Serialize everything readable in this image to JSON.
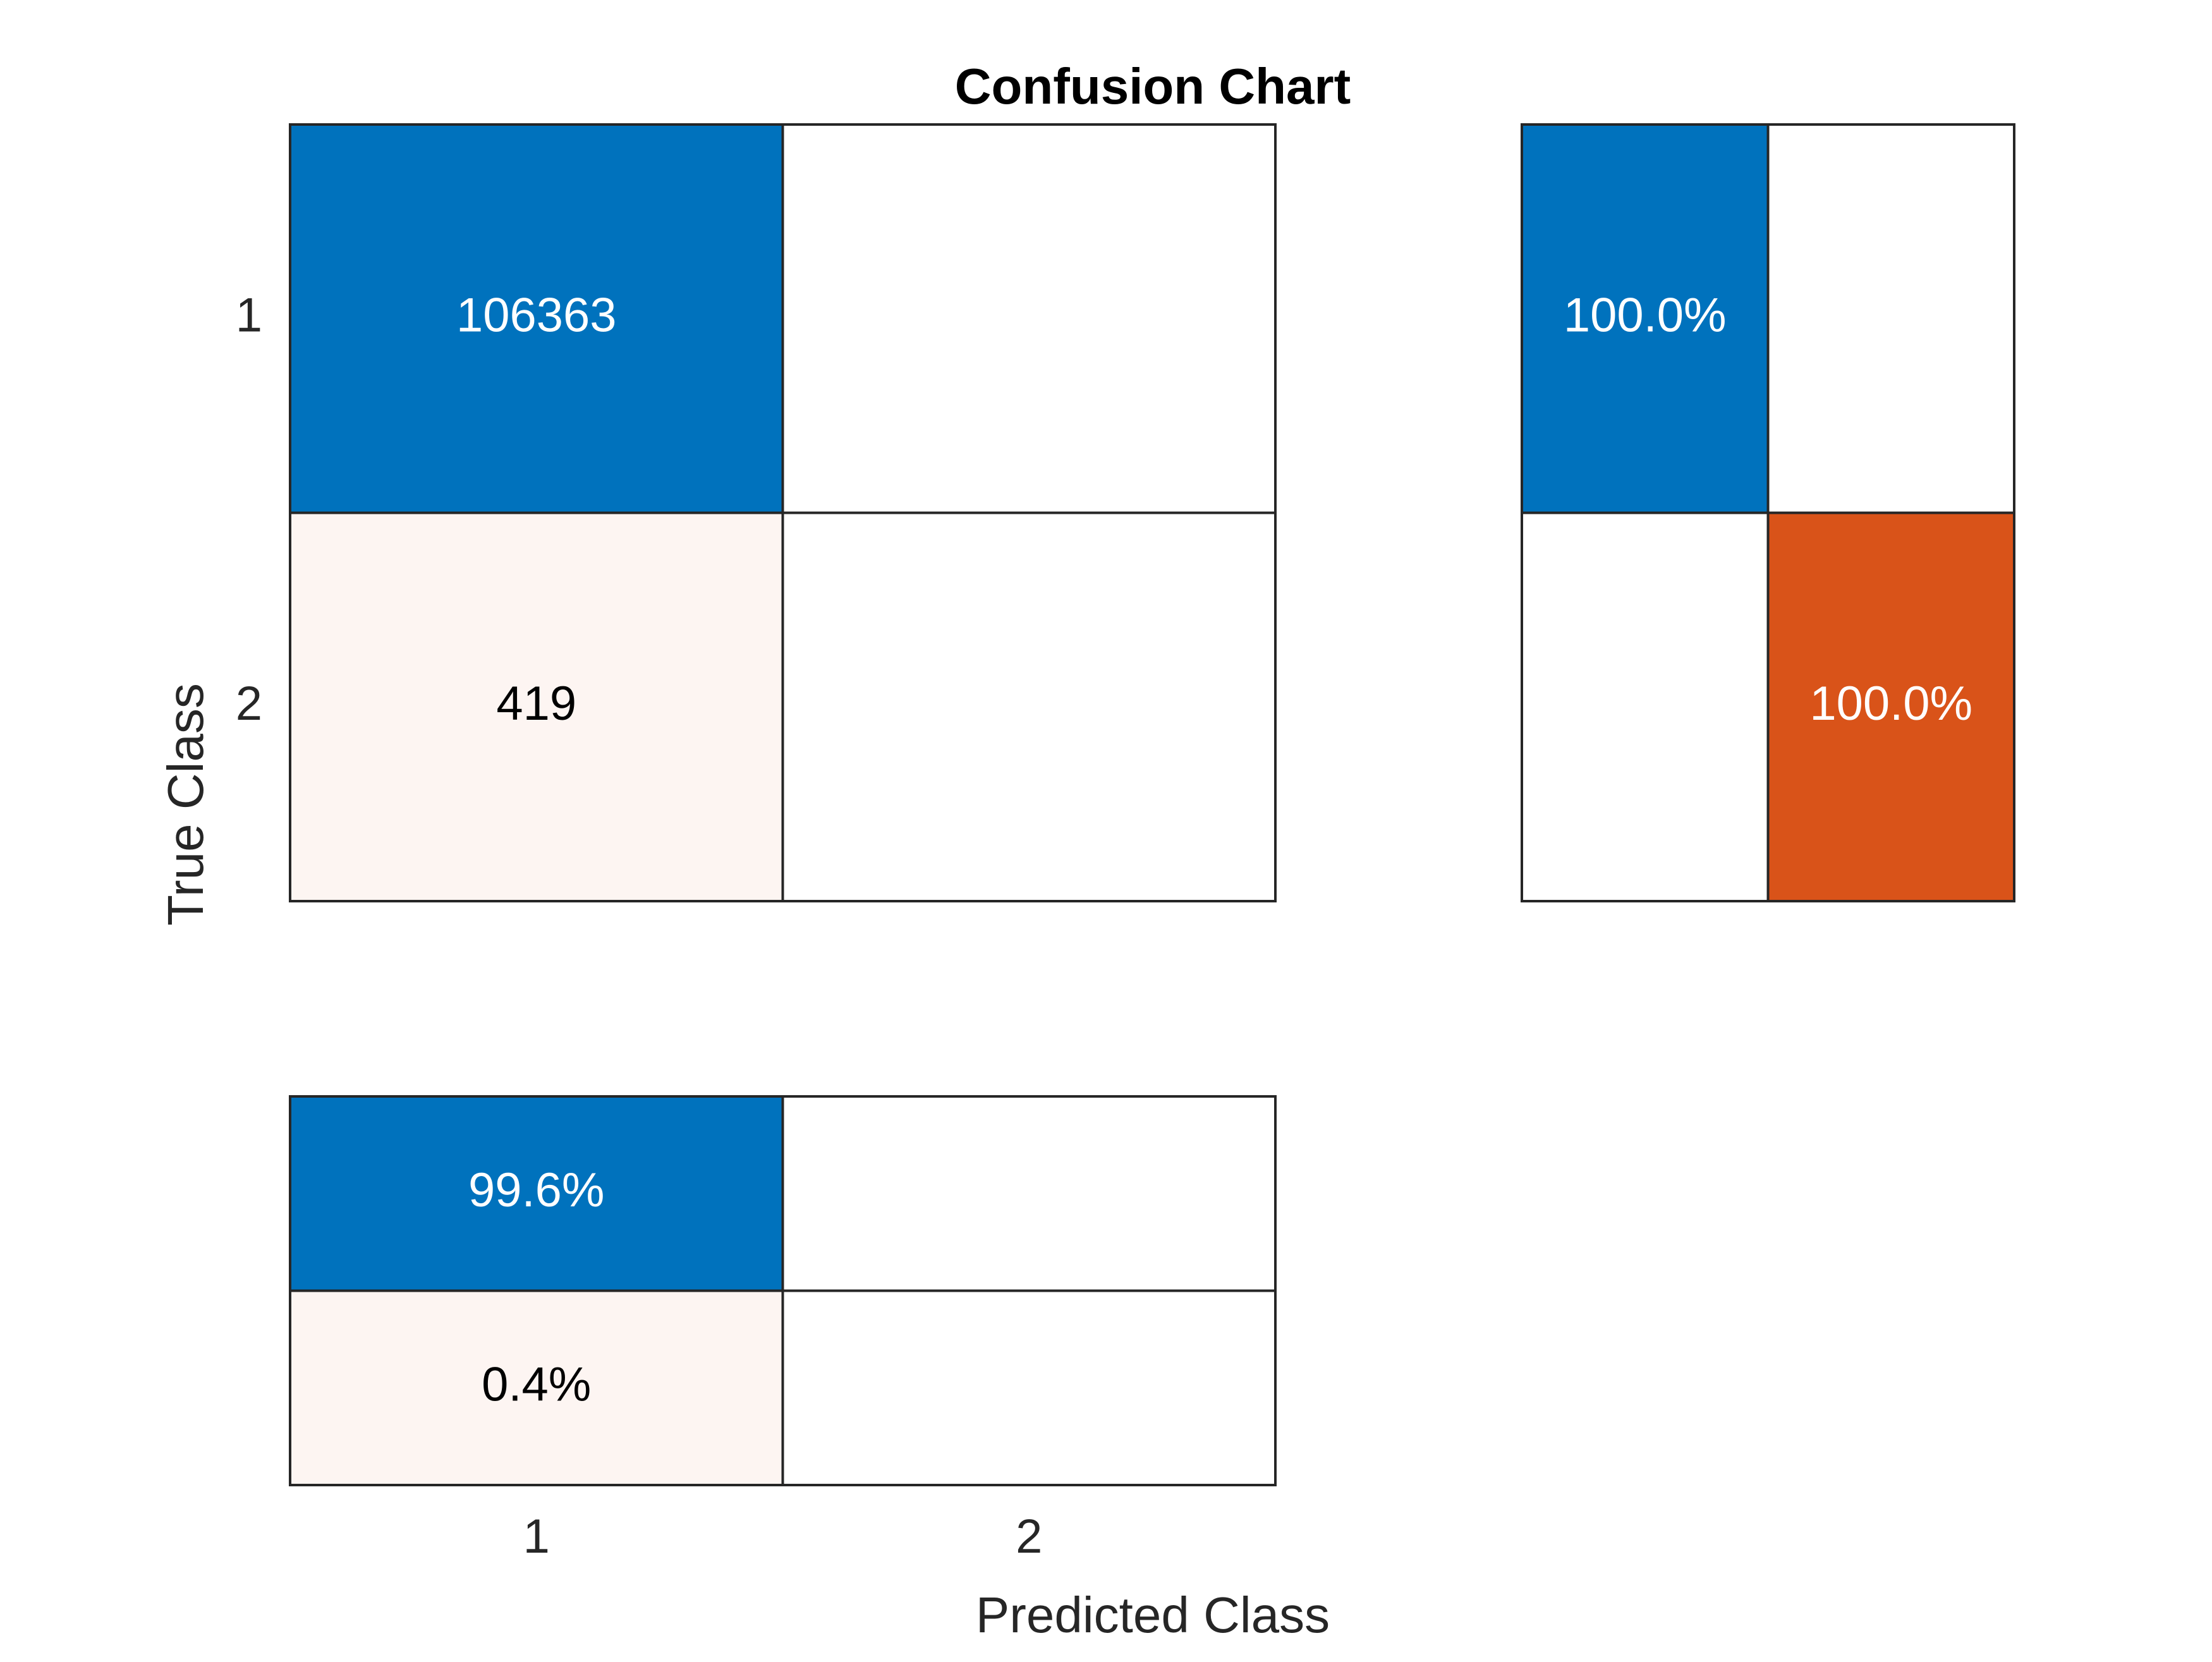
{
  "chart_data": {
    "type": "heatmap",
    "title": "Confusion Chart",
    "xlabel": "Predicted Class",
    "ylabel": "True Class",
    "classes": [
      "1",
      "2"
    ],
    "matrix": [
      [
        106363,
        null
      ],
      [
        419,
        null
      ]
    ],
    "row_summary": {
      "values": [
        [
          "100.0%",
          null
        ],
        [
          null,
          "100.0%"
        ]
      ]
    },
    "column_summary": {
      "values": [
        [
          "99.6%",
          null
        ],
        [
          "0.4%",
          null
        ]
      ]
    },
    "colors": {
      "correct": "#0072BD",
      "incorrect": "#D95319",
      "incorrect_light": "#FDF5F2",
      "empty": "#FFFFFF",
      "gridline": "#262626",
      "text_light": "#FFFFFF",
      "text_dark": "#000000",
      "axis_text": "#262626"
    }
  }
}
